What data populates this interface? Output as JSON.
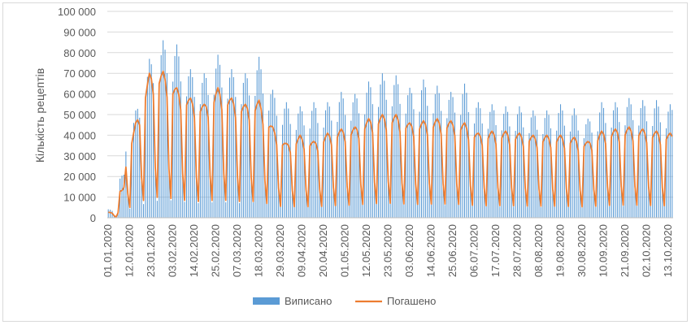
{
  "chart_data": {
    "type": "bar+line",
    "ylabel": "Кількість рецептів",
    "ylim": [
      0,
      100000
    ],
    "yticks": [
      0,
      10000,
      20000,
      30000,
      40000,
      50000,
      60000,
      70000,
      80000,
      90000,
      100000
    ],
    "ytick_labels": [
      "0",
      "10 000",
      "20 000",
      "30 000",
      "40 000",
      "50 000",
      "60 000",
      "70 000",
      "80 000",
      "90 000",
      "100 000"
    ],
    "x_start": "2020-01-01",
    "x_end": "2020-10-16",
    "xtick_labels": [
      "01.01.2020",
      "12.01.2020",
      "23.01.2020",
      "03.02.2020",
      "14.02.2020",
      "25.02.2020",
      "07.03.2020",
      "18.03.2020",
      "29.03.2020",
      "09.04.2020",
      "20.04.2020",
      "01.05.2020",
      "12.05.2020",
      "23.05.2020",
      "03.06.2020",
      "14.06.2020",
      "25.06.2020",
      "06.07.2020",
      "17.07.2020",
      "28.07.2020",
      "08.08.2020",
      "19.08.2020",
      "30.08.2020",
      "10.09.2020",
      "21.09.2020",
      "02.10.2020",
      "13.10.2020"
    ],
    "legend_position": "bottom",
    "grid": "horizontal",
    "weekly_peaks": {
      "x": [
        "2020-01-08",
        "2020-01-15",
        "2020-01-22",
        "2020-01-29",
        "2020-02-05",
        "2020-02-12",
        "2020-02-19",
        "2020-02-26",
        "2020-03-04",
        "2020-03-11",
        "2020-03-18",
        "2020-03-25",
        "2020-04-01",
        "2020-04-08",
        "2020-04-15",
        "2020-04-22",
        "2020-04-29",
        "2020-05-06",
        "2020-05-13",
        "2020-05-20",
        "2020-05-27",
        "2020-06-03",
        "2020-06-10",
        "2020-06-17",
        "2020-06-24",
        "2020-07-01",
        "2020-07-08",
        "2020-07-15",
        "2020-07-22",
        "2020-07-29",
        "2020-08-05",
        "2020-08-12",
        "2020-08-19",
        "2020-08-26",
        "2020-09-02",
        "2020-09-09",
        "2020-09-16",
        "2020-09-23",
        "2020-09-30",
        "2020-10-07",
        "2020-10-14"
      ],
      "prescribed": [
        34000,
        52000,
        77000,
        86000,
        84000,
        72000,
        70000,
        79000,
        72000,
        70000,
        78000,
        62000,
        56000,
        54000,
        56000,
        56000,
        61000,
        60000,
        66000,
        70000,
        69000,
        63000,
        67000,
        64000,
        61000,
        65000,
        56000,
        55000,
        54000,
        54000,
        52000,
        52000,
        55000,
        53000,
        48000,
        56000,
        56000,
        58000,
        57000,
        57000,
        55000
      ],
      "redeemed": [
        22000,
        46000,
        70000,
        71000,
        63000,
        58000,
        55000,
        63000,
        58000,
        55000,
        57000,
        44000,
        36000,
        40000,
        37000,
        41000,
        43000,
        44000,
        48000,
        50000,
        50000,
        46000,
        47000,
        48000,
        47000,
        46000,
        41000,
        42000,
        42000,
        41000,
        40000,
        40000,
        40000,
        39000,
        37000,
        42000,
        43000,
        44000,
        43000,
        42000,
        41000
      ]
    },
    "series": [
      {
        "name": "Виписано",
        "type": "bar",
        "color": "#5b9bd5"
      },
      {
        "name": "Погашено",
        "type": "line",
        "color": "#ed7d31"
      }
    ]
  }
}
